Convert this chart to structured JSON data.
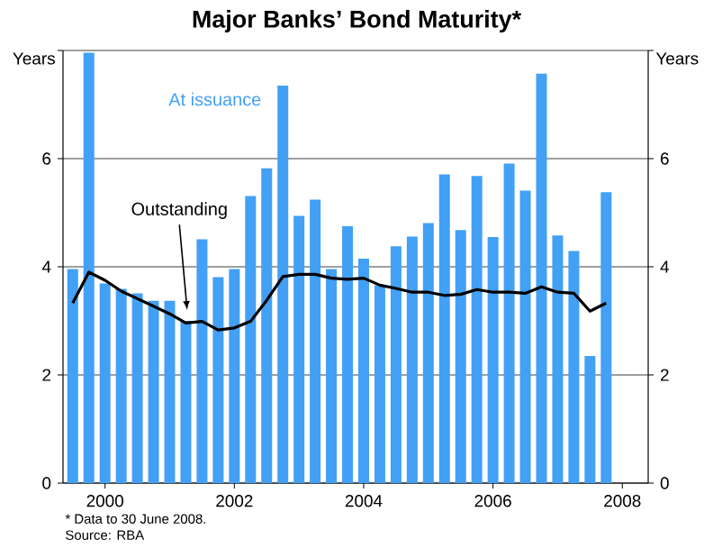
{
  "chart_data": {
    "type": "bar",
    "title": "Major Banks’ Bond Maturity*",
    "ylabel": "Years",
    "y2label": "Years",
    "x": [
      1999.5,
      1999.75,
      2000.0,
      2000.25,
      2000.5,
      2000.75,
      2001.0,
      2001.25,
      2001.5,
      2001.75,
      2002.0,
      2002.25,
      2002.5,
      2002.75,
      2003.0,
      2003.25,
      2003.5,
      2003.75,
      2004.0,
      2004.25,
      2004.5,
      2004.75,
      2005.0,
      2005.25,
      2005.5,
      2005.75,
      2006.0,
      2006.25,
      2006.5,
      2006.75,
      2007.0,
      2007.25,
      2007.5,
      2007.75
    ],
    "series": [
      {
        "name": "At issuance",
        "color": "#42a0f5",
        "values": [
          3.96,
          7.96,
          3.69,
          3.59,
          3.51,
          3.37,
          3.37,
          3.0,
          4.51,
          3.81,
          3.96,
          5.31,
          5.82,
          7.35,
          4.94,
          5.24,
          3.96,
          4.75,
          4.15,
          3.66,
          4.38,
          4.56,
          4.81,
          5.71,
          4.68,
          5.68,
          4.55,
          5.91,
          5.41,
          7.57,
          4.58,
          4.29,
          2.35,
          5.38
        ]
      },
      {
        "name": "Outstanding",
        "type": "line",
        "color": "#000000",
        "values": [
          3.33,
          3.9,
          3.75,
          3.55,
          3.41,
          3.27,
          3.13,
          2.96,
          2.99,
          2.83,
          2.87,
          2.99,
          3.38,
          3.82,
          3.86,
          3.86,
          3.79,
          3.77,
          3.79,
          3.66,
          3.6,
          3.53,
          3.53,
          3.47,
          3.49,
          3.58,
          3.53,
          3.53,
          3.51,
          3.63,
          3.53,
          3.51,
          3.18,
          3.33
        ]
      }
    ],
    "xlim": [
      1999.35,
      2008.4
    ],
    "xticks": [
      2000,
      2002,
      2004,
      2006,
      2008
    ],
    "ylim": [
      0,
      8
    ],
    "yticks": [
      0,
      2,
      4,
      6,
      {
        "value": 8,
        "label": null
      }
    ],
    "y2lim": [
      0,
      8
    ],
    "y2ticks": [
      0,
      2,
      4,
      6,
      {
        "value": 8,
        "label": null
      }
    ],
    "grid": "y",
    "legend": false,
    "annotations": [
      "*   Data to 30 June 2008.",
      "Source: RBA"
    ]
  }
}
